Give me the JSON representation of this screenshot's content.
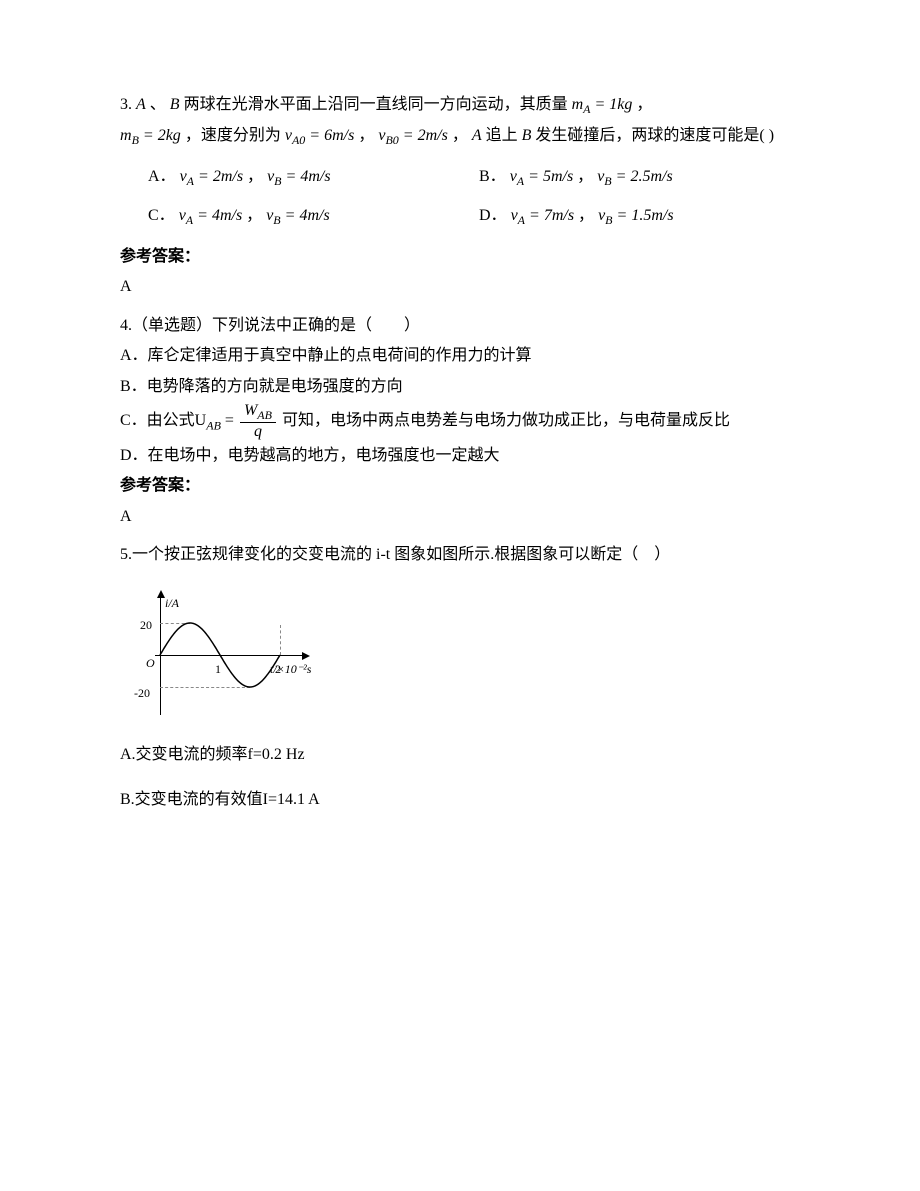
{
  "q3": {
    "prefix": "3. ",
    "varA": "A",
    "sep1": "、",
    "varB": "B",
    "text1": " 两球在光滑水平面上沿同一直线同一方向运动，其质量",
    "mA_expr": "m_A = 1kg",
    "comma1": "，",
    "mB_expr": "m_B = 2kg",
    "text2": "，速度分别为",
    "vA0_expr": "v_{A0} = 6m/s",
    "comma2": "，",
    "vB0_expr": "v_{B0} = 2m/s",
    "comma3": "，",
    "varA2": "A",
    "text3": "追上",
    "varB2": "B",
    "text4": "发生碰撞后，两球的速度可能是(  )",
    "options": {
      "A_label": "A．",
      "A_vA": "v_A = 2m/s",
      "A_sep": "，",
      "A_vB": "v_B = 4m/s",
      "B_label": "B．",
      "B_vA": "v_A = 5m/s",
      "B_sep": "，",
      "B_vB": "v_B = 2.5m/s",
      "C_label": "C．",
      "C_vA": "v_A = 4m/s",
      "C_sep": "，",
      "C_vB": "v_B = 4m/s",
      "D_label": "D．",
      "D_vA": "v_A = 7m/s",
      "D_sep": "，",
      "D_vB": "v_B = 1.5m/s"
    },
    "answer_label": "参考答案：",
    "answer": "A"
  },
  "q4": {
    "stem": "4.（单选题）下列说法中正确的是（　　）",
    "A": "A．库仑定律适用于真空中静止的点电荷间的作用力的计算",
    "B": "B．电势降落的方向就是电场强度的方向",
    "C_pre": "C．由公式U",
    "C_sub": "AB",
    "C_eq": "= ",
    "C_frac_num": "W_{AB}",
    "C_frac_den": "q",
    "C_post": " 可知，电场中两点电势差与电场力做功成正比，与电荷量成反比",
    "D": "D．在电场中，电势越高的地方，电场强度也一定越大",
    "answer_label": "参考答案：",
    "answer": "A"
  },
  "q5": {
    "stem": "5.一个按正弦规律变化的交变电流的 i-t 图象如图所示.根据图象可以断定（　）",
    "chart": {
      "type": "line",
      "y_label": "i/A",
      "x_label": "t/×10⁻²s",
      "origin_label": "O",
      "y_ticks": [
        20,
        -20
      ],
      "x_ticks": [
        1,
        2
      ],
      "ylim": [
        -25,
        25
      ],
      "xlim": [
        0,
        2.3
      ],
      "amplitude": 20,
      "period": 2,
      "line_color": "#000000",
      "axis_color": "#000000",
      "dash_color": "#888888",
      "background": "#ffffff"
    },
    "A": "A.交变电流的频率f=0.2 Hz",
    "B": "B.交变电流的有效值I=14.1 A"
  }
}
